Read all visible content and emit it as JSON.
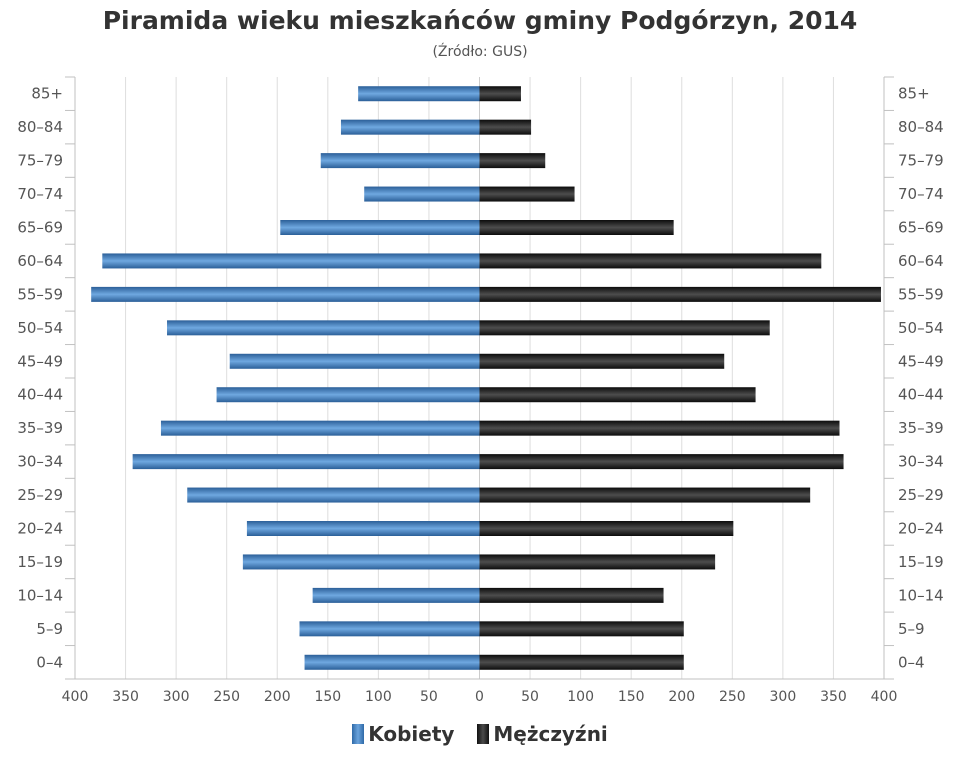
{
  "chart_data": {
    "type": "bar",
    "orientation": "horizontal",
    "layout": "population-pyramid",
    "title": "Piramida wieku mieszkańców gminy Podgórzyn, 2014",
    "subtitle": "(Źródło: GUS)",
    "categories": [
      "0–4",
      "5–9",
      "10–14",
      "15–19",
      "20–24",
      "25–29",
      "30–34",
      "35–39",
      "40–44",
      "45–49",
      "50–54",
      "55–59",
      "60–64",
      "65–69",
      "70–74",
      "75–79",
      "80–84",
      "85+"
    ],
    "series": [
      {
        "name": "Kobiety",
        "side": "left",
        "color": "#3d7cc0",
        "values": [
          173,
          178,
          165,
          234,
          230,
          289,
          343,
          315,
          260,
          247,
          309,
          384,
          373,
          197,
          114,
          157,
          137,
          120
        ]
      },
      {
        "name": "Mężczyźni",
        "side": "right",
        "color": "#1a1a1a",
        "values": [
          202,
          202,
          182,
          233,
          251,
          327,
          360,
          356,
          273,
          242,
          287,
          397,
          338,
          192,
          94,
          65,
          51,
          41
        ]
      }
    ],
    "xlim": [
      -400,
      400
    ],
    "xticks": [
      400,
      350,
      300,
      250,
      200,
      150,
      100,
      50,
      0,
      50,
      100,
      150,
      200,
      250,
      300,
      350,
      400
    ],
    "xtick_values": [
      -400,
      -350,
      -300,
      -250,
      -200,
      -150,
      -100,
      -50,
      0,
      50,
      100,
      150,
      200,
      250,
      300,
      350,
      400
    ],
    "grid": true,
    "legend_position": "bottom-center"
  }
}
